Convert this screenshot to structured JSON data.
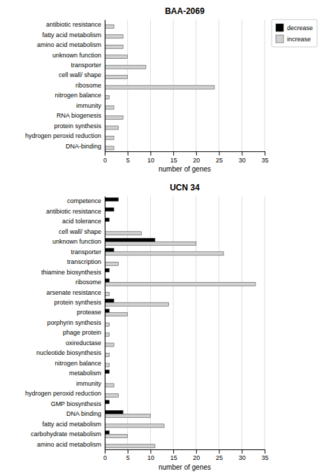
{
  "chart_data": [
    {
      "type": "bar",
      "orientation": "horizontal",
      "title": "BAA-2069",
      "xlabel": "number of genes",
      "categories": [
        "antibiotic resistance",
        "fatty acid metabolism",
        "amino acid metabolism",
        "unknown function",
        "transporter",
        "cell wall/ shape",
        "ribosome",
        "nitrogen balance",
        "immunity",
        "RNA biogenesis",
        "protein synthesis",
        "hydrogen peroxid reduction",
        "DNA-binding"
      ],
      "series": [
        {
          "name": "decrease",
          "color": "#000000",
          "values": [
            0,
            0,
            0,
            0,
            0,
            0,
            0,
            0,
            0,
            0,
            0,
            0,
            0
          ]
        },
        {
          "name": "increase",
          "color": "#d0d0d0",
          "values": [
            2,
            4,
            4,
            5,
            9,
            5,
            24,
            1,
            2,
            4,
            3,
            2,
            2
          ]
        }
      ],
      "xlim": [
        0,
        35
      ],
      "xticks": [
        0,
        5,
        10,
        15,
        20,
        25,
        30,
        35
      ],
      "grid": true,
      "legend": "right"
    },
    {
      "type": "bar",
      "orientation": "horizontal",
      "title": "UCN 34",
      "xlabel": "number of genes",
      "categories": [
        "competence",
        "antibiotic resistance",
        "acid tolerance",
        "cell wall/ shape",
        "unknown function",
        "transporter",
        "transcription",
        "thiamine biosynthesis",
        "ribosome",
        "arsenate resistance",
        "protein synthesis",
        "protease",
        "porphyrin synthesis",
        "phage protein",
        "oxireductase",
        "nucleotide biosynthesis",
        "nitrogen balance",
        "metabolism",
        "immunity",
        "hydrogen peroxid reduction",
        "GMP biosynthesis",
        "DNA binding",
        "fatty acid metabolism",
        "carbohydrate metabolism",
        "amino acid metabolism"
      ],
      "series": [
        {
          "name": "decrease",
          "color": "#000000",
          "values": [
            3,
            2,
            1,
            0,
            11,
            2,
            0,
            1,
            1,
            0,
            2,
            1,
            0,
            0,
            0,
            0,
            0,
            1,
            0,
            0,
            1,
            4,
            0,
            1,
            0
          ]
        },
        {
          "name": "increase",
          "color": "#d0d0d0",
          "values": [
            0,
            0,
            0,
            8,
            20,
            26,
            3,
            0,
            33,
            1,
            14,
            5,
            1,
            1,
            2,
            1,
            1,
            0,
            2,
            3,
            0,
            10,
            13,
            5,
            11
          ]
        }
      ],
      "xlim": [
        0,
        35
      ],
      "xticks": [
        0,
        5,
        10,
        15,
        20,
        25,
        30,
        35
      ],
      "grid": true
    }
  ]
}
